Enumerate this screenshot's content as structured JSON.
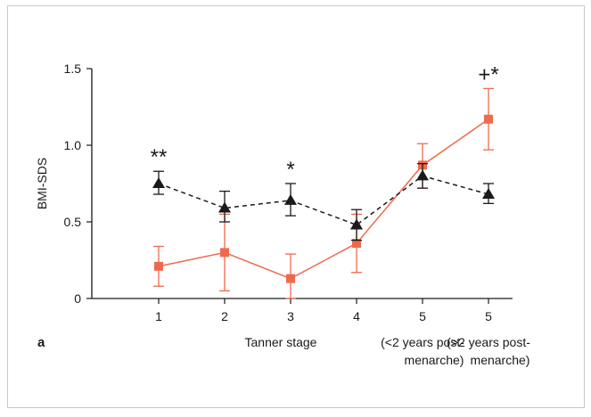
{
  "chart_data": {
    "type": "line",
    "panel_label": "a",
    "xlabel": "Tanner stage",
    "ylabel": "BMI-SDS",
    "ylim": [
      0,
      1.5
    ],
    "y_ticks": [
      "0",
      "0.5",
      "1.0",
      "1.5"
    ],
    "categories": [
      "1",
      "2",
      "3",
      "4",
      "5",
      "5"
    ],
    "category_notes": [
      "",
      "",
      "",
      "",
      "(<2 years post-\nmenarche)",
      "(>2 years post-\nmenarche)"
    ],
    "series": [
      {
        "marker": "square",
        "line_style": "solid",
        "color": "#ee6a4f",
        "values": [
          0.21,
          0.3,
          0.13,
          0.36,
          0.87,
          1.17
        ],
        "err_low": [
          0.08,
          0.05,
          0.0,
          0.17,
          0.72,
          0.97
        ],
        "err_high": [
          0.34,
          0.55,
          0.29,
          0.55,
          1.01,
          1.37
        ]
      },
      {
        "marker": "triangle",
        "line_style": "dashed",
        "color": "#1a1a1a",
        "values": [
          0.75,
          0.59,
          0.64,
          0.48,
          0.8,
          0.68
        ],
        "err_low": [
          0.68,
          0.5,
          0.54,
          0.38,
          0.72,
          0.62
        ],
        "err_high": [
          0.83,
          0.7,
          0.75,
          0.58,
          0.88,
          0.75
        ]
      }
    ],
    "annotations": [
      {
        "category_index": 0,
        "text": "**"
      },
      {
        "category_index": 2,
        "text": "*"
      },
      {
        "category_index": 5,
        "text": "+*"
      }
    ],
    "grid": false,
    "legend": "none"
  }
}
